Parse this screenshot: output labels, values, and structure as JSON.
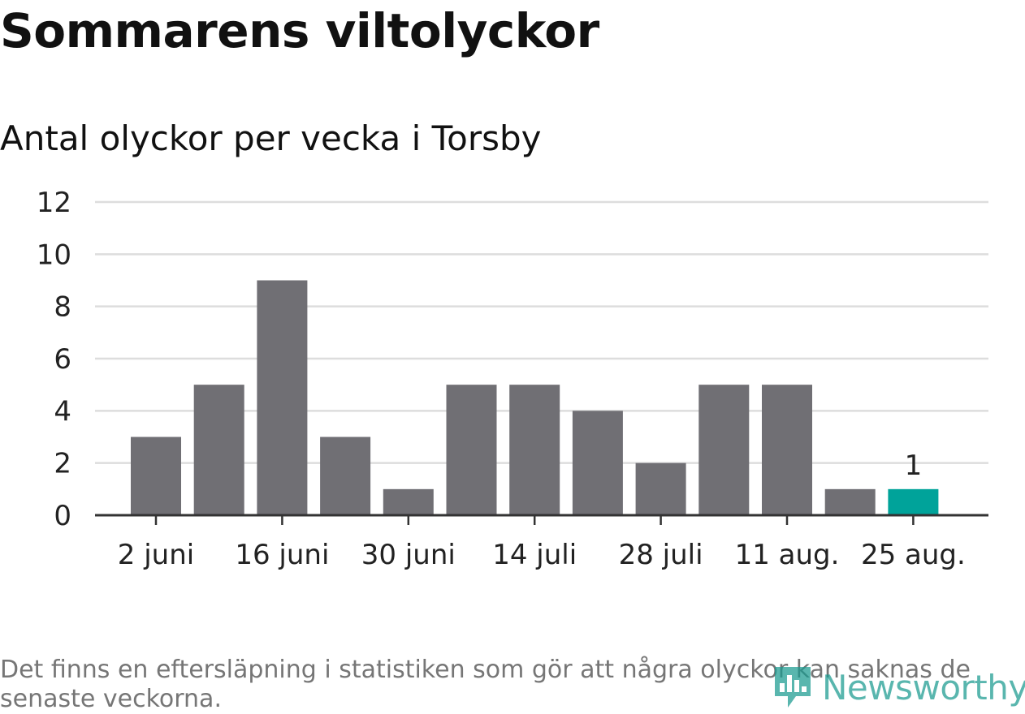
{
  "title": "Sommarens viltolyckor",
  "subtitle": "Antal olyckor per vecka i Torsby",
  "footnote": "Det finns en eftersläpning i statistiken som gör att några olyckor kan saknas de senaste veckorna.",
  "logo": {
    "text": "Newsworthy",
    "icon": "newsworthy-logo-icon",
    "color": "#1a9a90"
  },
  "chart_data": {
    "type": "bar",
    "values": [
      3,
      5,
      9,
      3,
      1,
      5,
      5,
      4,
      2,
      5,
      5,
      1,
      1
    ],
    "tick_labels": [
      "2 juni",
      "16 juni",
      "30 juni",
      "14 juli",
      "28 juli",
      "11 aug.",
      "25 aug."
    ],
    "tick_positions": [
      0,
      2,
      4,
      6,
      8,
      10,
      12
    ],
    "highlight_index": 12,
    "highlight_label": "1",
    "ylim": [
      0,
      12
    ],
    "yticks": [
      "0",
      "2",
      "4",
      "6",
      "8",
      "10",
      "12"
    ],
    "grid": true,
    "colors": {
      "bar": "#706f74",
      "highlight": "#00a39a",
      "grid": "#dddddd",
      "axis": "#333333"
    }
  }
}
